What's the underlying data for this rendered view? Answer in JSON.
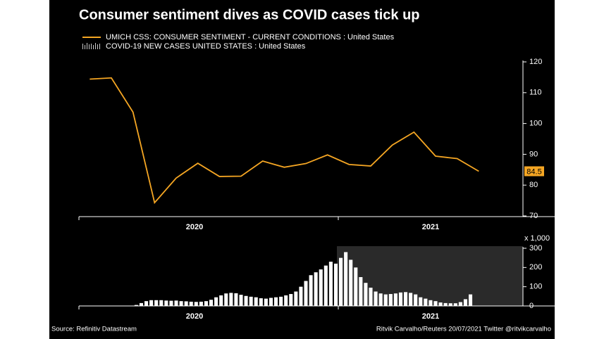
{
  "title": "Consumer sentiment dives as COVID cases tick up",
  "source": "Source: Refinitiv Datastream",
  "credit": "Ritvik Carvalho/Reuters 20/07/2021 Twitter @ritvikcarvalho",
  "chart_data": [
    {
      "type": "line",
      "series": [
        {
          "name": "UMICH CSS: CONSUMER SENTIMENT - CURRENT CONDITIONS : United States",
          "color": "#f5a623",
          "values": [
            114.4,
            114.8,
            103.7,
            74.3,
            82.3,
            87.1,
            82.8,
            82.9,
            87.8,
            85.8,
            87.0,
            89.8,
            86.7,
            86.2,
            93.0,
            97.2,
            89.4,
            88.6,
            84.5
          ]
        }
      ],
      "ylim": [
        70,
        120
      ],
      "yticks": [
        70,
        80,
        90,
        100,
        110,
        120
      ],
      "year_labels": [
        "2020",
        "2021"
      ]
    },
    {
      "type": "bar",
      "series": [
        {
          "name": "COVID-19 NEW CASES UNITED STATES : United States",
          "color": "#ffffff",
          "values": [
            5,
            15,
            25,
            30,
            30,
            30,
            28,
            27,
            28,
            25,
            24,
            22,
            21,
            22,
            25,
            32,
            45,
            55,
            65,
            68,
            66,
            58,
            52,
            48,
            45,
            40,
            38,
            42,
            45,
            48,
            55,
            62,
            75,
            100,
            130,
            160,
            175,
            190,
            210,
            230,
            220,
            250,
            280,
            240,
            200,
            150,
            120,
            95,
            75,
            65,
            60,
            62,
            65,
            70,
            72,
            68,
            60,
            45,
            38,
            30,
            25,
            18,
            15,
            14,
            14,
            20,
            35,
            60
          ]
        }
      ],
      "ylim": [
        0,
        300
      ],
      "yticks": [
        0,
        100,
        200,
        300
      ],
      "y_unit_label": "x 1,000",
      "year_labels": [
        "2020",
        "2021"
      ]
    }
  ]
}
